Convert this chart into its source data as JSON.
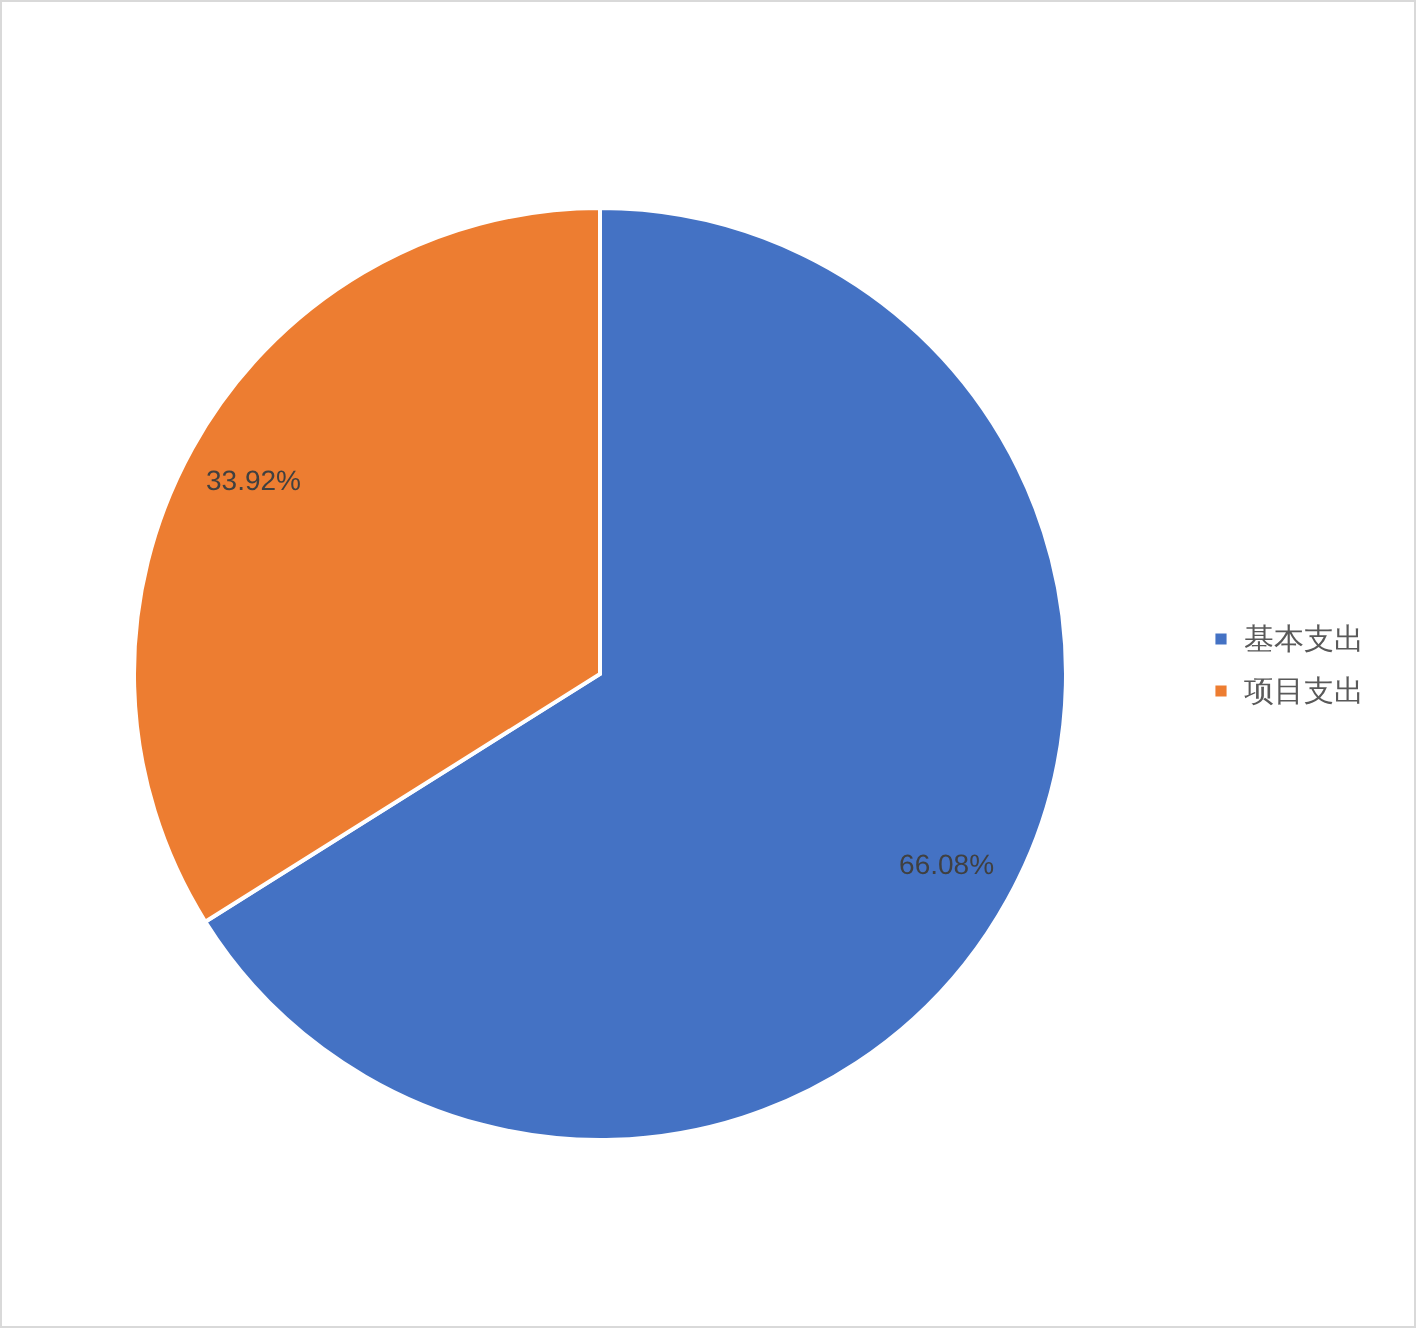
{
  "chart_data": {
    "type": "pie",
    "categories": [
      "基本支出",
      "项目支出"
    ],
    "values": [
      66.08,
      33.92
    ],
    "colors": [
      "#4472c4",
      "#ed7d31"
    ],
    "value_labels": [
      "66.08%",
      "33.92%"
    ],
    "legend": "right"
  }
}
